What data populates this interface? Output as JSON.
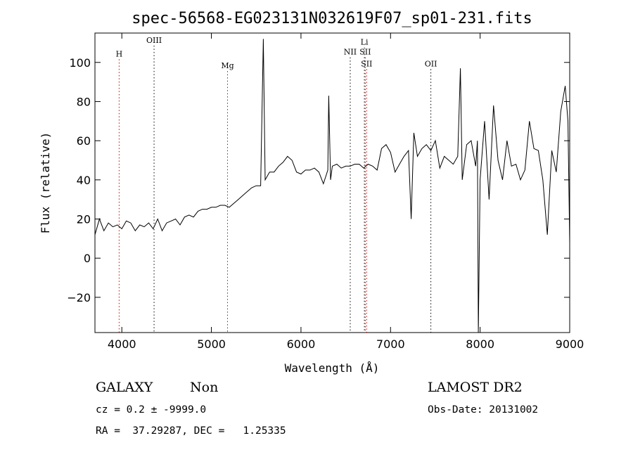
{
  "chart_data": {
    "type": "line",
    "title": "spec-56568-EG023131N032619F07_sp01-231.fits",
    "xlabel": "Wavelength (Å)",
    "ylabel": "Flux (relative)",
    "xlim": [
      3700,
      9000
    ],
    "ylim": [
      -38,
      115
    ],
    "xticks": [
      4000,
      5000,
      6000,
      7000,
      8000,
      9000
    ],
    "yticks": [
      -20,
      0,
      20,
      40,
      60,
      80,
      100
    ],
    "grid": false,
    "line_color": "#000000",
    "marker_color_dotted": "#000000",
    "marker_color_red": "#cc0000",
    "lines": [
      {
        "label": "H",
        "x": 3970,
        "color": "#cc0000",
        "label_y": 103
      },
      {
        "label": "OIII",
        "x": 4360,
        "color": "#000000",
        "label_y": 110
      },
      {
        "label": "Mg",
        "x": 5180,
        "color": "#cc0000",
        "label_y": 97
      },
      {
        "label": "NII",
        "x": 6550,
        "color": "#000000",
        "label_y": 104
      },
      {
        "label": "Li",
        "x": 6708,
        "color": "#000000",
        "label_y": 109
      },
      {
        "label": "SII",
        "x": 6718,
        "color": "#cc0000",
        "label_y": 104
      },
      {
        "label": "SII",
        "x": 6733,
        "color": "#cc0000",
        "label_y": 98
      },
      {
        "label": "OII",
        "x": 7450,
        "color": "#000000",
        "label_y": 98
      }
    ],
    "x": [
      3700,
      3750,
      3800,
      3850,
      3900,
      3950,
      4000,
      4050,
      4100,
      4150,
      4200,
      4250,
      4300,
      4350,
      4400,
      4450,
      4500,
      4550,
      4600,
      4650,
      4700,
      4750,
      4800,
      4850,
      4900,
      4950,
      5000,
      5050,
      5100,
      5150,
      5200,
      5250,
      5300,
      5350,
      5400,
      5450,
      5500,
      5550,
      5580,
      5600,
      5650,
      5700,
      5750,
      5800,
      5850,
      5900,
      5950,
      6000,
      6050,
      6100,
      6150,
      6200,
      6250,
      6300,
      6310,
      6330,
      6350,
      6400,
      6450,
      6500,
      6550,
      6600,
      6650,
      6700,
      6750,
      6800,
      6850,
      6900,
      6950,
      7000,
      7050,
      7100,
      7150,
      7200,
      7230,
      7260,
      7300,
      7350,
      7400,
      7450,
      7500,
      7550,
      7600,
      7650,
      7700,
      7750,
      7780,
      7800,
      7850,
      7900,
      7950,
      7970,
      7980,
      8000,
      8050,
      8100,
      8150,
      8200,
      8250,
      8300,
      8350,
      8400,
      8450,
      8500,
      8550,
      8600,
      8650,
      8700,
      8750,
      8800,
      8850,
      8900,
      8950,
      8980,
      9000
    ],
    "values": [
      12,
      20,
      14,
      18,
      16,
      17,
      15,
      19,
      18,
      14,
      17,
      16,
      18,
      15,
      20,
      14,
      18,
      19,
      20,
      17,
      21,
      22,
      21,
      24,
      25,
      25,
      26,
      26,
      27,
      27,
      26,
      28,
      30,
      32,
      34,
      36,
      37,
      37,
      112,
      40,
      44,
      44,
      47,
      49,
      52,
      50,
      44,
      43,
      45,
      45,
      46,
      44,
      38,
      45,
      83,
      40,
      47,
      48,
      46,
      47,
      47,
      48,
      48,
      46,
      48,
      47,
      45,
      56,
      58,
      54,
      44,
      48,
      52,
      55,
      20,
      64,
      52,
      56,
      58,
      55,
      60,
      46,
      52,
      50,
      48,
      52,
      97,
      40,
      58,
      60,
      47,
      60,
      -38,
      40,
      70,
      30,
      78,
      50,
      40,
      60,
      47,
      48,
      40,
      45,
      70,
      56,
      55,
      40,
      12,
      55,
      44,
      75,
      88,
      70,
      8
    ]
  },
  "info": {
    "object_class": "GALAXY",
    "subclass": "Non",
    "survey": "LAMOST DR2",
    "cz": "cz = 0.2 ± -9999.0",
    "obs_date": "Obs-Date: 20131002",
    "coords": "RA =  37.29287, DEC =   1.25335"
  }
}
